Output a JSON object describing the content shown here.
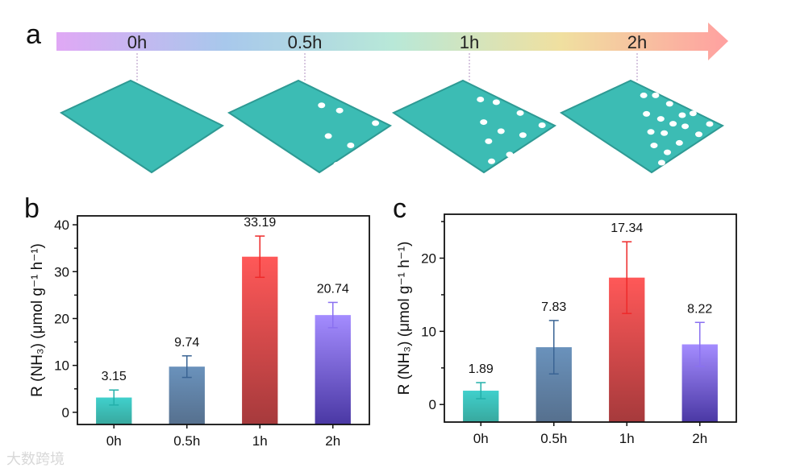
{
  "panel_a": {
    "letter": "a",
    "timeline_labels": [
      "0h",
      "0.5h",
      "1h",
      "2h"
    ],
    "arrow_gradient": [
      "#e0a8f5",
      "#a8c8ec",
      "#b8e8d8",
      "#f0e0a0",
      "#ffa0a0"
    ],
    "sheet_color": "#3cbcb4"
  },
  "chart_data": [
    {
      "panel": "b",
      "type": "bar",
      "categories": [
        "0h",
        "0.5h",
        "1h",
        "2h"
      ],
      "values": [
        3.15,
        9.74,
        33.19,
        20.74
      ],
      "errors": [
        1.6,
        2.3,
        4.4,
        2.7
      ],
      "data_labels": [
        "3.15",
        "9.74",
        "33.19",
        "20.74"
      ],
      "ylabel": "R (NH3) (μmol g-1 h-1)",
      "ylim": [
        -2.6,
        41.9
      ],
      "yticks": [
        0,
        10,
        20,
        30,
        40
      ],
      "grid": false
    },
    {
      "panel": "c",
      "type": "bar",
      "categories": [
        "0h",
        "0.5h",
        "1h",
        "2h"
      ],
      "values": [
        1.89,
        7.83,
        17.34,
        8.22
      ],
      "errors": [
        1.1,
        3.65,
        4.9,
        3.0
      ],
      "data_labels": [
        "1.89",
        "7.83",
        "17.34",
        "8.22"
      ],
      "ylabel": "R (NH3) (μmol g-1 h-1)",
      "ylim": [
        -2.4,
        26
      ],
      "yticks": [
        0,
        10,
        20
      ],
      "grid": false
    }
  ],
  "bar_colors": [
    {
      "top": "#40d0cc",
      "bottom": "#38a89e",
      "err": "#22b0aa"
    },
    {
      "top": "#6a92bc",
      "bottom": "#56708e",
      "err": "#3a6494"
    },
    {
      "top": "#ff5858",
      "bottom": "#a63a3c",
      "err": "#ee2a2a"
    },
    {
      "top": "#a48cff",
      "bottom": "#4a38a4",
      "err": "#8a70f0"
    }
  ],
  "watermark": "大数跨境"
}
